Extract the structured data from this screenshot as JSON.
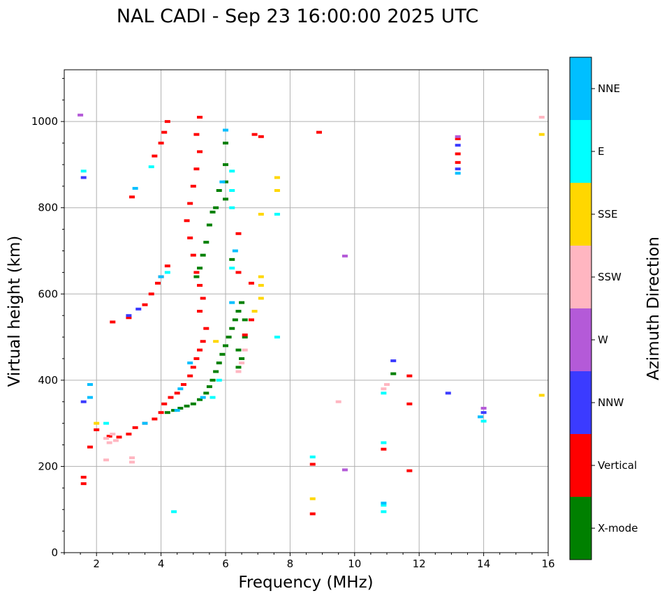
{
  "chart_data": {
    "type": "scatter",
    "title": "NAL CADI - Sep 23 16:00:00 2025 UTC",
    "xlabel": "Frequency (MHz)",
    "ylabel": "Virtual height (km)",
    "xlim": [
      1,
      16
    ],
    "ylim": [
      0,
      1120
    ],
    "xticks": [
      2,
      4,
      6,
      8,
      10,
      12,
      14,
      16
    ],
    "yticks": [
      0,
      200,
      400,
      600,
      800,
      1000
    ],
    "grid": true,
    "colorbar": {
      "label": "Azimuth Direction",
      "categories": [
        {
          "name": "X-mode",
          "color": "#008000"
        },
        {
          "name": "Vertical",
          "color": "#ff0000"
        },
        {
          "name": "NNW",
          "color": "#3b3bff"
        },
        {
          "name": "W",
          "color": "#b45ad8"
        },
        {
          "name": "SSW",
          "color": "#ffb6c1"
        },
        {
          "name": "SSE",
          "color": "#ffd700"
        },
        {
          "name": "E",
          "color": "#00ffff"
        },
        {
          "name": "NNE",
          "color": "#00bfff"
        }
      ]
    },
    "series": [
      {
        "name": "X-mode",
        "points": [
          [
            4.2,
            325
          ],
          [
            4.4,
            330
          ],
          [
            4.6,
            335
          ],
          [
            4.8,
            340
          ],
          [
            5.0,
            345
          ],
          [
            5.2,
            355
          ],
          [
            5.4,
            370
          ],
          [
            5.5,
            385
          ],
          [
            5.6,
            400
          ],
          [
            5.7,
            420
          ],
          [
            5.8,
            440
          ],
          [
            5.9,
            460
          ],
          [
            6.0,
            480
          ],
          [
            6.1,
            500
          ],
          [
            6.2,
            520
          ],
          [
            6.3,
            540
          ],
          [
            6.4,
            560
          ],
          [
            6.5,
            580
          ],
          [
            6.4,
            470
          ],
          [
            6.5,
            450
          ],
          [
            6.6,
            500
          ],
          [
            6.6,
            540
          ],
          [
            6.4,
            430
          ],
          [
            5.1,
            640
          ],
          [
            5.2,
            660
          ],
          [
            5.3,
            690
          ],
          [
            5.4,
            720
          ],
          [
            5.5,
            760
          ],
          [
            5.6,
            790
          ],
          [
            5.7,
            800
          ],
          [
            6.0,
            950
          ],
          [
            6.0,
            900
          ],
          [
            6.0,
            860
          ],
          [
            6.0,
            820
          ],
          [
            6.2,
            680
          ],
          [
            5.8,
            840
          ],
          [
            11.2,
            415
          ]
        ]
      },
      {
        "name": "Vertical",
        "points": [
          [
            1.6,
            160
          ],
          [
            1.6,
            175
          ],
          [
            1.8,
            245
          ],
          [
            2.0,
            285
          ],
          [
            2.4,
            270
          ],
          [
            2.7,
            268
          ],
          [
            3.0,
            275
          ],
          [
            3.2,
            290
          ],
          [
            3.5,
            300
          ],
          [
            3.8,
            310
          ],
          [
            4.0,
            325
          ],
          [
            4.1,
            345
          ],
          [
            4.3,
            360
          ],
          [
            4.5,
            370
          ],
          [
            4.7,
            390
          ],
          [
            4.9,
            410
          ],
          [
            5.0,
            430
          ],
          [
            5.1,
            450
          ],
          [
            5.2,
            470
          ],
          [
            5.3,
            490
          ],
          [
            5.4,
            520
          ],
          [
            5.2,
            560
          ],
          [
            5.3,
            590
          ],
          [
            5.2,
            620
          ],
          [
            5.1,
            650
          ],
          [
            5.0,
            690
          ],
          [
            4.9,
            730
          ],
          [
            4.8,
            770
          ],
          [
            4.9,
            810
          ],
          [
            5.0,
            850
          ],
          [
            5.1,
            890
          ],
          [
            5.2,
            930
          ],
          [
            5.1,
            970
          ],
          [
            5.2,
            1010
          ],
          [
            2.5,
            535
          ],
          [
            3.0,
            545
          ],
          [
            3.5,
            575
          ],
          [
            3.7,
            600
          ],
          [
            3.9,
            625
          ],
          [
            4.0,
            640
          ],
          [
            4.2,
            665
          ],
          [
            3.1,
            825
          ],
          [
            3.8,
            920
          ],
          [
            4.0,
            950
          ],
          [
            4.1,
            975
          ],
          [
            4.2,
            1000
          ],
          [
            6.4,
            740
          ],
          [
            6.4,
            650
          ],
          [
            6.8,
            625
          ],
          [
            6.8,
            540
          ],
          [
            6.6,
            505
          ],
          [
            6.9,
            970
          ],
          [
            7.1,
            965
          ],
          [
            8.7,
            205
          ],
          [
            8.7,
            90
          ],
          [
            8.9,
            975
          ],
          [
            11.7,
            345
          ],
          [
            11.7,
            190
          ],
          [
            11.7,
            410
          ],
          [
            10.9,
            240
          ],
          [
            13.2,
            905
          ],
          [
            13.2,
            925
          ],
          [
            13.2,
            960
          ]
        ]
      },
      {
        "name": "NNW",
        "points": [
          [
            1.6,
            350
          ],
          [
            1.6,
            870
          ],
          [
            3.0,
            550
          ],
          [
            3.3,
            565
          ],
          [
            12.9,
            370
          ],
          [
            13.2,
            890
          ],
          [
            13.2,
            945
          ],
          [
            14.0,
            325
          ],
          [
            11.2,
            445
          ]
        ]
      },
      {
        "name": "W",
        "points": [
          [
            13.2,
            965
          ],
          [
            14.0,
            335
          ],
          [
            9.7,
            688
          ],
          [
            9.7,
            192
          ],
          [
            1.5,
            1015
          ]
        ]
      },
      {
        "name": "SSW",
        "points": [
          [
            2.3,
            265
          ],
          [
            2.4,
            255
          ],
          [
            2.5,
            275
          ],
          [
            2.6,
            260
          ],
          [
            6.4,
            420
          ],
          [
            6.5,
            440
          ],
          [
            6.6,
            470
          ],
          [
            9.5,
            350
          ],
          [
            10.9,
            380
          ],
          [
            11.0,
            390
          ],
          [
            15.8,
            1010
          ],
          [
            2.3,
            215
          ],
          [
            3.1,
            210
          ],
          [
            3.1,
            220
          ]
        ]
      },
      {
        "name": "SSE",
        "points": [
          [
            2.0,
            300
          ],
          [
            5.7,
            490
          ],
          [
            6.9,
            560
          ],
          [
            7.1,
            620
          ],
          [
            7.1,
            590
          ],
          [
            7.1,
            640
          ],
          [
            7.6,
            870
          ],
          [
            7.6,
            840
          ],
          [
            7.1,
            785
          ],
          [
            8.7,
            125
          ],
          [
            15.8,
            970
          ],
          [
            15.8,
            365
          ]
        ]
      },
      {
        "name": "E",
        "points": [
          [
            1.6,
            885
          ],
          [
            2.3,
            300
          ],
          [
            3.7,
            895
          ],
          [
            4.2,
            650
          ],
          [
            4.4,
            95
          ],
          [
            5.6,
            360
          ],
          [
            5.8,
            400
          ],
          [
            6.2,
            885
          ],
          [
            6.2,
            840
          ],
          [
            6.2,
            800
          ],
          [
            6.2,
            660
          ],
          [
            7.6,
            785
          ],
          [
            7.6,
            500
          ],
          [
            8.7,
            222
          ],
          [
            10.9,
            255
          ],
          [
            10.9,
            370
          ],
          [
            10.9,
            110
          ],
          [
            10.9,
            95
          ],
          [
            14.0,
            305
          ]
        ]
      },
      {
        "name": "NNE",
        "points": [
          [
            1.8,
            390
          ],
          [
            1.8,
            360
          ],
          [
            3.2,
            845
          ],
          [
            3.5,
            300
          ],
          [
            4.0,
            640
          ],
          [
            4.5,
            330
          ],
          [
            4.6,
            380
          ],
          [
            4.9,
            440
          ],
          [
            5.3,
            360
          ],
          [
            5.9,
            860
          ],
          [
            6.0,
            980
          ],
          [
            6.2,
            580
          ],
          [
            6.3,
            700
          ],
          [
            10.9,
            115
          ],
          [
            13.9,
            315
          ],
          [
            13.2,
            880
          ]
        ]
      }
    ]
  }
}
